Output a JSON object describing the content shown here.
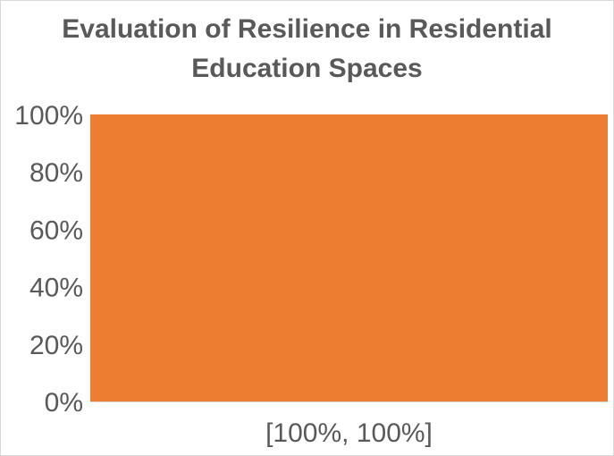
{
  "chart_data": {
    "type": "bar",
    "title": "Evaluation of Resilience in Residential\nEducation Spaces",
    "xlabel": "",
    "ylabel": "",
    "categories": [
      "[100%, 100%]"
    ],
    "values": [
      100
    ],
    "ylim": [
      0,
      100
    ],
    "y_ticks": [
      "0%",
      "20%",
      "40%",
      "60%",
      "80%",
      "100%"
    ],
    "grid": false,
    "legend": "none",
    "bar_color": "#ED7D31",
    "axis_color": "#D9D9D9",
    "text_color": "#595959"
  }
}
